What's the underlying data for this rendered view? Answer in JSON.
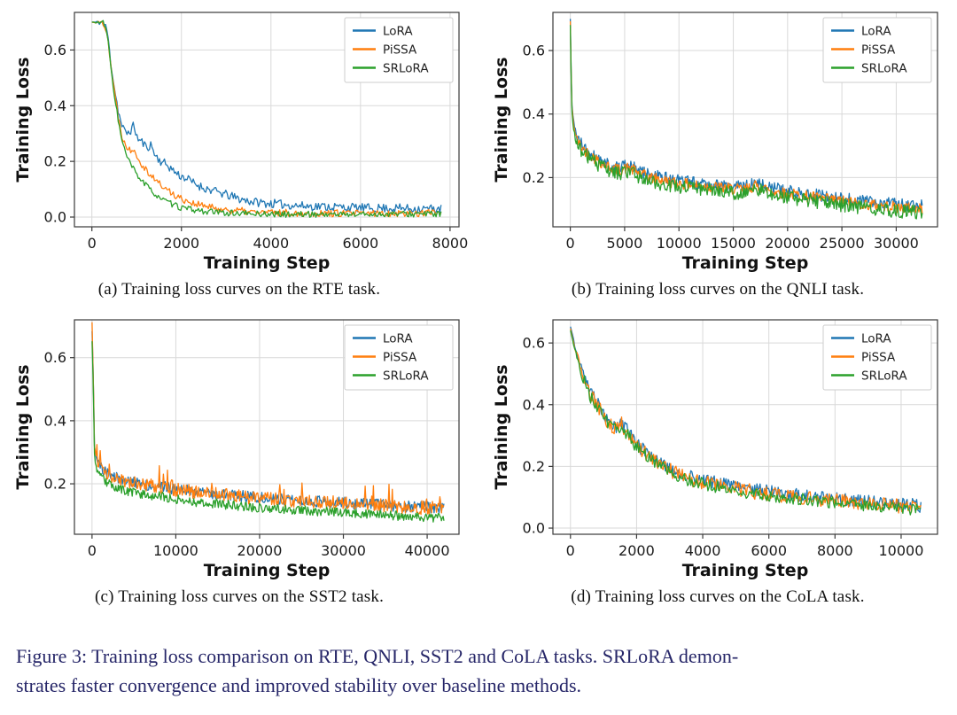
{
  "figure": {
    "caption_line1": "Figure 3: Training loss comparison on RTE, QNLI, SST2 and CoLA tasks. SRLoRA demon-",
    "caption_line2": "strates faster convergence and improved stability over baseline methods."
  },
  "styles": {
    "caption_color": "#262668",
    "grid_color": "#d9d9d9",
    "frame_color": "#3a3a3a",
    "tick_label_color": "#1a1a1a",
    "axis_label_color": "#111111",
    "legend_border_color": "#cccccc",
    "legend_text_color": "#222222",
    "background": "#ffffff"
  },
  "chart_data": [
    {
      "id": "rte",
      "type": "line",
      "subcaption": "(a)  Training loss curves on the RTE task.",
      "xlabel": "Training Step",
      "ylabel": "Training Loss",
      "xlim": [
        -390,
        8200
      ],
      "ylim": [
        -0.035,
        0.735
      ],
      "xticks": {
        "values": [
          0,
          2000,
          4000,
          6000,
          8000
        ],
        "labels": [
          "0",
          "2000",
          "4000",
          "6000",
          "8000"
        ]
      },
      "yticks": {
        "values": [
          0.0,
          0.2,
          0.4,
          0.6
        ],
        "labels": [
          "0.0",
          "0.2",
          "0.4",
          "0.6"
        ]
      },
      "grid": true,
      "legend_position": "top-right",
      "samples": 280,
      "series": [
        {
          "name": "LoRA",
          "color": "#1f77b4",
          "seed": 11,
          "noise": 0.016,
          "trend": [
            [
              0,
              0.7
            ],
            [
              260,
              0.698
            ],
            [
              340,
              0.67
            ],
            [
              420,
              0.56
            ],
            [
              500,
              0.47
            ],
            [
              580,
              0.39
            ],
            [
              660,
              0.33
            ],
            [
              760,
              0.3
            ],
            [
              860,
              0.31
            ],
            [
              940,
              0.33
            ],
            [
              1020,
              0.28
            ],
            [
              1120,
              0.27
            ],
            [
              1220,
              0.25
            ],
            [
              1320,
              0.26
            ],
            [
              1420,
              0.22
            ],
            [
              1540,
              0.2
            ],
            [
              1660,
              0.19
            ],
            [
              1800,
              0.17
            ],
            [
              1950,
              0.15
            ],
            [
              2100,
              0.14
            ],
            [
              2300,
              0.12
            ],
            [
              2500,
              0.105
            ],
            [
              2700,
              0.095
            ],
            [
              3000,
              0.08
            ],
            [
              3300,
              0.065
            ],
            [
              3600,
              0.055
            ],
            [
              3900,
              0.05
            ],
            [
              4300,
              0.045
            ],
            [
              4700,
              0.04
            ],
            [
              5200,
              0.038
            ],
            [
              5700,
              0.035
            ],
            [
              6200,
              0.032
            ],
            [
              6800,
              0.032
            ],
            [
              7300,
              0.03
            ],
            [
              7800,
              0.03
            ]
          ]
        },
        {
          "name": "PiSSA",
          "color": "#ff7f0e",
          "seed": 22,
          "noise": 0.013,
          "trend": [
            [
              0,
              0.7
            ],
            [
              260,
              0.698
            ],
            [
              340,
              0.665
            ],
            [
              420,
              0.55
            ],
            [
              500,
              0.455
            ],
            [
              580,
              0.37
            ],
            [
              660,
              0.3
            ],
            [
              760,
              0.255
            ],
            [
              860,
              0.24
            ],
            [
              940,
              0.25
            ],
            [
              1020,
              0.215
            ],
            [
              1120,
              0.19
            ],
            [
              1220,
              0.17
            ],
            [
              1320,
              0.15
            ],
            [
              1420,
              0.135
            ],
            [
              1540,
              0.115
            ],
            [
              1660,
              0.1
            ],
            [
              1800,
              0.085
            ],
            [
              1950,
              0.07
            ],
            [
              2100,
              0.06
            ],
            [
              2300,
              0.048
            ],
            [
              2500,
              0.04
            ],
            [
              2700,
              0.033
            ],
            [
              3000,
              0.026
            ],
            [
              3300,
              0.022
            ],
            [
              3600,
              0.018
            ],
            [
              3900,
              0.016
            ],
            [
              4300,
              0.015
            ],
            [
              4700,
              0.014
            ],
            [
              5200,
              0.014
            ],
            [
              5700,
              0.013
            ],
            [
              6200,
              0.013
            ],
            [
              6800,
              0.014
            ],
            [
              7300,
              0.014
            ],
            [
              7800,
              0.018
            ]
          ]
        },
        {
          "name": "SRLoRA",
          "color": "#2ca02c",
          "seed": 33,
          "noise": 0.011,
          "trend": [
            [
              0,
              0.7
            ],
            [
              260,
              0.698
            ],
            [
              340,
              0.66
            ],
            [
              420,
              0.54
            ],
            [
              500,
              0.445
            ],
            [
              580,
              0.355
            ],
            [
              660,
              0.28
            ],
            [
              760,
              0.225
            ],
            [
              860,
              0.19
            ],
            [
              940,
              0.17
            ],
            [
              1020,
              0.15
            ],
            [
              1120,
              0.13
            ],
            [
              1220,
              0.112
            ],
            [
              1320,
              0.095
            ],
            [
              1420,
              0.082
            ],
            [
              1540,
              0.068
            ],
            [
              1660,
              0.055
            ],
            [
              1800,
              0.045
            ],
            [
              1950,
              0.036
            ],
            [
              2100,
              0.03
            ],
            [
              2300,
              0.025
            ],
            [
              2500,
              0.021
            ],
            [
              2700,
              0.018
            ],
            [
              3000,
              0.015
            ],
            [
              3300,
              0.013
            ],
            [
              3600,
              0.012
            ],
            [
              3900,
              0.011
            ],
            [
              4300,
              0.01
            ],
            [
              4700,
              0.01
            ],
            [
              5200,
              0.01
            ],
            [
              5700,
              0.01
            ],
            [
              6200,
              0.01
            ],
            [
              6800,
              0.011
            ],
            [
              7300,
              0.011
            ],
            [
              7800,
              0.012
            ]
          ]
        }
      ]
    },
    {
      "id": "qnli",
      "type": "line",
      "subcaption": "(b)  Training loss curves on the QNLI task.",
      "xlabel": "Training Step",
      "ylabel": "Training Loss",
      "xlim": [
        -1600,
        33800
      ],
      "ylim": [
        0.045,
        0.72
      ],
      "xticks": {
        "values": [
          0,
          5000,
          10000,
          15000,
          20000,
          25000,
          30000
        ],
        "labels": [
          "0",
          "5000",
          "10000",
          "15000",
          "20000",
          "25000",
          "30000"
        ]
      },
      "yticks": {
        "values": [
          0.2,
          0.4,
          0.6
        ],
        "labels": [
          "0.2",
          "0.4",
          "0.6"
        ]
      },
      "grid": true,
      "legend_position": "top-right",
      "samples": 420,
      "base_trend": [
        [
          0,
          0.69
        ],
        [
          120,
          0.43
        ],
        [
          250,
          0.38
        ],
        [
          400,
          0.345
        ],
        [
          600,
          0.32
        ],
        [
          900,
          0.3
        ],
        [
          1300,
          0.285
        ],
        [
          1800,
          0.27
        ],
        [
          2400,
          0.255
        ],
        [
          3000,
          0.242
        ],
        [
          3700,
          0.23
        ],
        [
          4500,
          0.222
        ],
        [
          5300,
          0.228
        ],
        [
          5900,
          0.22
        ],
        [
          6600,
          0.208
        ],
        [
          7400,
          0.198
        ],
        [
          8200,
          0.192
        ],
        [
          9000,
          0.186
        ],
        [
          10000,
          0.18
        ],
        [
          11000,
          0.176
        ],
        [
          12000,
          0.172
        ],
        [
          13000,
          0.17
        ],
        [
          14000,
          0.166
        ],
        [
          15000,
          0.162
        ],
        [
          16000,
          0.16
        ],
        [
          17000,
          0.172
        ],
        [
          17600,
          0.168
        ],
        [
          18400,
          0.158
        ],
        [
          19200,
          0.152
        ],
        [
          20000,
          0.148
        ],
        [
          21000,
          0.143
        ],
        [
          22000,
          0.138
        ],
        [
          23000,
          0.133
        ],
        [
          24000,
          0.128
        ],
        [
          25000,
          0.124
        ],
        [
          26000,
          0.12
        ],
        [
          27000,
          0.115
        ],
        [
          28000,
          0.112
        ],
        [
          29000,
          0.108
        ],
        [
          30000,
          0.105
        ],
        [
          31200,
          0.102
        ],
        [
          32400,
          0.1
        ]
      ],
      "series": [
        {
          "name": "LoRA",
          "color": "#1f77b4",
          "seed": 41,
          "noise": 0.02,
          "offset": 0.01
        },
        {
          "name": "PiSSA",
          "color": "#ff7f0e",
          "seed": 42,
          "noise": 0.018,
          "offset": 0.002
        },
        {
          "name": "SRLoRA",
          "color": "#2ca02c",
          "seed": 43,
          "noise": 0.022,
          "offset": -0.01
        }
      ]
    },
    {
      "id": "sst2",
      "type": "line",
      "subcaption": "(c)  Training loss curves on the SST2 task.",
      "xlabel": "Training Step",
      "ylabel": "Training Loss",
      "xlim": [
        -2100,
        43800
      ],
      "ylim": [
        0.04,
        0.72
      ],
      "xticks": {
        "values": [
          0,
          10000,
          20000,
          30000,
          40000
        ],
        "labels": [
          "0",
          "10000",
          "20000",
          "30000",
          "40000"
        ]
      },
      "yticks": {
        "values": [
          0.2,
          0.4,
          0.6
        ],
        "labels": [
          "0.2",
          "0.4",
          "0.6"
        ]
      },
      "grid": true,
      "legend_position": "top-right",
      "samples": 430,
      "base_trend": [
        [
          0,
          0.68
        ],
        [
          150,
          0.54
        ],
        [
          300,
          0.31
        ],
        [
          600,
          0.27
        ],
        [
          1000,
          0.25
        ],
        [
          1500,
          0.238
        ],
        [
          2000,
          0.228
        ],
        [
          2600,
          0.22
        ],
        [
          3300,
          0.212
        ],
        [
          4000,
          0.205
        ],
        [
          5000,
          0.2
        ],
        [
          6000,
          0.196
        ],
        [
          7500,
          0.19
        ],
        [
          9000,
          0.184
        ],
        [
          10500,
          0.178
        ],
        [
          12000,
          0.172
        ],
        [
          14000,
          0.166
        ],
        [
          16000,
          0.162
        ],
        [
          18000,
          0.157
        ],
        [
          20000,
          0.152
        ],
        [
          22000,
          0.149
        ],
        [
          24000,
          0.146
        ],
        [
          26000,
          0.142
        ],
        [
          28000,
          0.14
        ],
        [
          30000,
          0.136
        ],
        [
          32000,
          0.132
        ],
        [
          34000,
          0.13
        ],
        [
          36000,
          0.127
        ],
        [
          38000,
          0.124
        ],
        [
          40000,
          0.122
        ],
        [
          42000,
          0.12
        ]
      ],
      "series": [
        {
          "name": "LoRA",
          "color": "#1f77b4",
          "seed": 51,
          "noise": 0.018,
          "offset": 0.004
        },
        {
          "name": "PiSSA",
          "color": "#ff7f0e",
          "seed": 52,
          "noise": 0.022,
          "offset": 0.002,
          "spikes": {
            "prob": 0.05,
            "amp": 0.07
          }
        },
        {
          "name": "SRLoRA",
          "color": "#2ca02c",
          "seed": 53,
          "noise": 0.015,
          "offset": -0.028
        }
      ]
    },
    {
      "id": "cola",
      "type": "line",
      "subcaption": "(d)  Training loss curves on the CoLA task.",
      "xlabel": "Training Step",
      "ylabel": "Training Loss",
      "xlim": [
        -530,
        11100
      ],
      "ylim": [
        -0.02,
        0.675
      ],
      "xticks": {
        "values": [
          0,
          2000,
          4000,
          6000,
          8000,
          10000
        ],
        "labels": [
          "0",
          "2000",
          "4000",
          "6000",
          "8000",
          "10000"
        ]
      },
      "yticks": {
        "values": [
          0.0,
          0.2,
          0.4,
          0.6
        ],
        "labels": [
          "0.0",
          "0.2",
          "0.4",
          "0.6"
        ]
      },
      "grid": true,
      "legend_position": "top-right",
      "samples": 330,
      "base_trend": [
        [
          0,
          0.645
        ],
        [
          120,
          0.59
        ],
        [
          240,
          0.54
        ],
        [
          360,
          0.5
        ],
        [
          480,
          0.465
        ],
        [
          600,
          0.43
        ],
        [
          700,
          0.415
        ],
        [
          800,
          0.4
        ],
        [
          900,
          0.38
        ],
        [
          1000,
          0.36
        ],
        [
          1100,
          0.345
        ],
        [
          1250,
          0.33
        ],
        [
          1400,
          0.32
        ],
        [
          1550,
          0.335
        ],
        [
          1700,
          0.31
        ],
        [
          1850,
          0.29
        ],
        [
          2000,
          0.265
        ],
        [
          2150,
          0.25
        ],
        [
          2300,
          0.238
        ],
        [
          2500,
          0.222
        ],
        [
          2700,
          0.205
        ],
        [
          2900,
          0.192
        ],
        [
          3100,
          0.18
        ],
        [
          3400,
          0.166
        ],
        [
          3700,
          0.155
        ],
        [
          4000,
          0.148
        ],
        [
          4400,
          0.138
        ],
        [
          4800,
          0.13
        ],
        [
          5200,
          0.122
        ],
        [
          5600,
          0.115
        ],
        [
          6000,
          0.11
        ],
        [
          6500,
          0.104
        ],
        [
          7000,
          0.097
        ],
        [
          7500,
          0.092
        ],
        [
          8000,
          0.087
        ],
        [
          8500,
          0.082
        ],
        [
          9000,
          0.078
        ],
        [
          9500,
          0.073
        ],
        [
          10000,
          0.068
        ],
        [
          10600,
          0.065
        ]
      ],
      "series": [
        {
          "name": "LoRA",
          "color": "#1f77b4",
          "seed": 61,
          "noise": 0.022,
          "offset": 0.008
        },
        {
          "name": "PiSSA",
          "color": "#ff7f0e",
          "seed": 62,
          "noise": 0.024,
          "offset": 0.002
        },
        {
          "name": "SRLoRA",
          "color": "#2ca02c",
          "seed": 63,
          "noise": 0.02,
          "offset": -0.004
        }
      ]
    }
  ]
}
